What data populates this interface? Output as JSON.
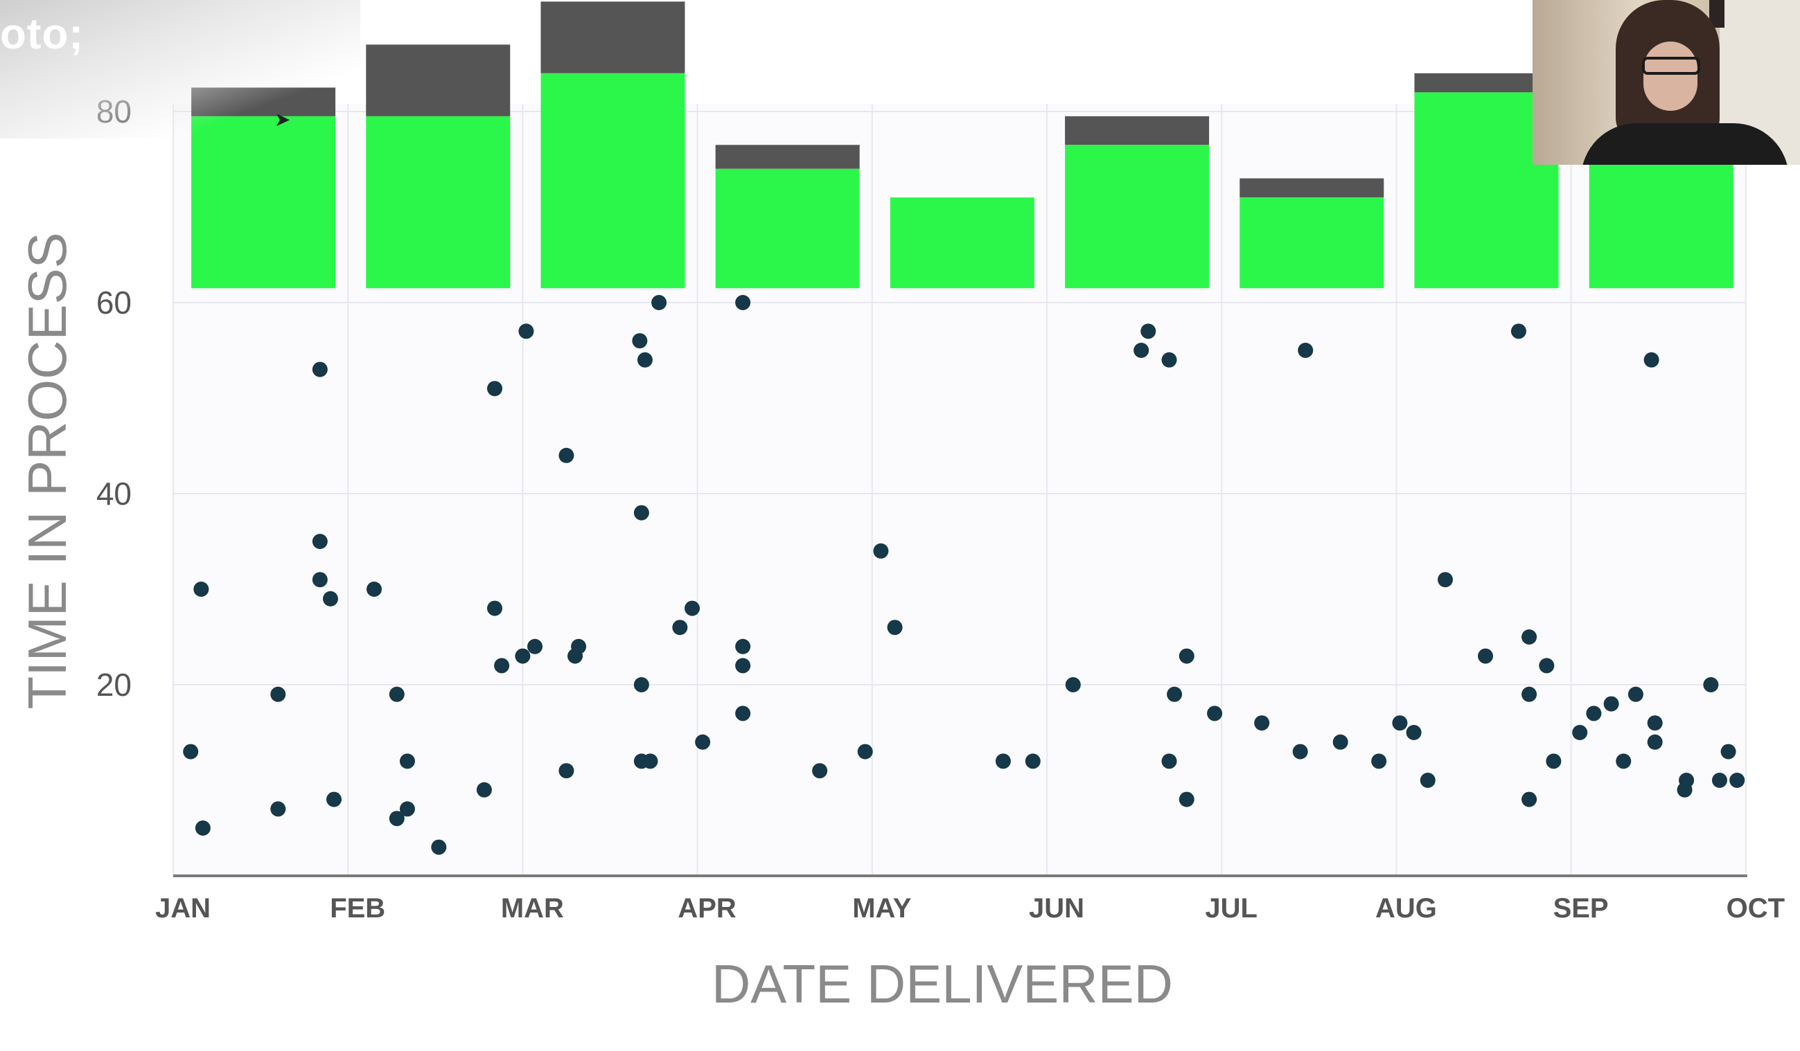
{
  "overlay": {
    "corner_text": "oto;"
  },
  "colors": {
    "bar_green": "#2bf74a",
    "bar_cap": "#555555",
    "dot": "#163848",
    "axis_text": "#555555",
    "title_text": "#8a8a8a",
    "grid": "#e7e8ee"
  },
  "chart_data": {
    "type": "scatter",
    "xlabel": "DATE DELIVERED",
    "ylabel": "TIME IN PROCESS",
    "x_ticks": [
      "JAN",
      "FEB",
      "MAR",
      "APR",
      "MAY",
      "JUN",
      "JUL",
      "AUG",
      "SEP",
      "OCT"
    ],
    "y_ticks": [
      20,
      40,
      60,
      80
    ],
    "x_range": [
      0,
      9
    ],
    "y_range": [
      0,
      80
    ],
    "grid": true,
    "points": [
      {
        "x": 0.1,
        "y": 13
      },
      {
        "x": 0.16,
        "y": 30
      },
      {
        "x": 0.17,
        "y": 5
      },
      {
        "x": 0.6,
        "y": 19
      },
      {
        "x": 0.6,
        "y": 7
      },
      {
        "x": 0.84,
        "y": 53
      },
      {
        "x": 0.84,
        "y": 35
      },
      {
        "x": 0.84,
        "y": 31
      },
      {
        "x": 0.9,
        "y": 29
      },
      {
        "x": 0.92,
        "y": 8
      },
      {
        "x": 1.15,
        "y": 30
      },
      {
        "x": 1.28,
        "y": 19
      },
      {
        "x": 1.28,
        "y": 6
      },
      {
        "x": 1.34,
        "y": 12
      },
      {
        "x": 1.34,
        "y": 7
      },
      {
        "x": 1.52,
        "y": 3
      },
      {
        "x": 1.78,
        "y": 9
      },
      {
        "x": 1.84,
        "y": 51
      },
      {
        "x": 1.84,
        "y": 28
      },
      {
        "x": 1.88,
        "y": 22
      },
      {
        "x": 2.0,
        "y": 23
      },
      {
        "x": 2.02,
        "y": 57
      },
      {
        "x": 2.07,
        "y": 24
      },
      {
        "x": 2.25,
        "y": 44
      },
      {
        "x": 2.25,
        "y": 11
      },
      {
        "x": 2.3,
        "y": 23
      },
      {
        "x": 2.32,
        "y": 24
      },
      {
        "x": 2.67,
        "y": 56
      },
      {
        "x": 2.68,
        "y": 38
      },
      {
        "x": 2.68,
        "y": 20
      },
      {
        "x": 2.68,
        "y": 12
      },
      {
        "x": 2.7,
        "y": 54
      },
      {
        "x": 2.73,
        "y": 12
      },
      {
        "x": 2.78,
        "y": 60
      },
      {
        "x": 2.9,
        "y": 26
      },
      {
        "x": 2.97,
        "y": 28
      },
      {
        "x": 3.03,
        "y": 14
      },
      {
        "x": 3.26,
        "y": 60
      },
      {
        "x": 3.26,
        "y": 24
      },
      {
        "x": 3.26,
        "y": 22
      },
      {
        "x": 3.26,
        "y": 17
      },
      {
        "x": 3.7,
        "y": 11
      },
      {
        "x": 3.96,
        "y": 13
      },
      {
        "x": 4.05,
        "y": 34
      },
      {
        "x": 4.13,
        "y": 26
      },
      {
        "x": 4.75,
        "y": 12
      },
      {
        "x": 4.92,
        "y": 12
      },
      {
        "x": 5.15,
        "y": 20
      },
      {
        "x": 5.54,
        "y": 55
      },
      {
        "x": 5.58,
        "y": 57
      },
      {
        "x": 5.7,
        "y": 54
      },
      {
        "x": 5.7,
        "y": 12
      },
      {
        "x": 5.73,
        "y": 19
      },
      {
        "x": 5.8,
        "y": 23
      },
      {
        "x": 5.8,
        "y": 8
      },
      {
        "x": 5.96,
        "y": 17
      },
      {
        "x": 6.23,
        "y": 16
      },
      {
        "x": 6.45,
        "y": 13
      },
      {
        "x": 6.48,
        "y": 55
      },
      {
        "x": 6.68,
        "y": 14
      },
      {
        "x": 6.9,
        "y": 12
      },
      {
        "x": 7.02,
        "y": 16
      },
      {
        "x": 7.1,
        "y": 15
      },
      {
        "x": 7.18,
        "y": 10
      },
      {
        "x": 7.28,
        "y": 31
      },
      {
        "x": 7.51,
        "y": 23
      },
      {
        "x": 7.7,
        "y": 57
      },
      {
        "x": 7.76,
        "y": 25
      },
      {
        "x": 7.76,
        "y": 19
      },
      {
        "x": 7.76,
        "y": 8
      },
      {
        "x": 7.86,
        "y": 22
      },
      {
        "x": 7.9,
        "y": 12
      },
      {
        "x": 8.05,
        "y": 15
      },
      {
        "x": 8.13,
        "y": 17
      },
      {
        "x": 8.23,
        "y": 18
      },
      {
        "x": 8.3,
        "y": 12
      },
      {
        "x": 8.37,
        "y": 19
      },
      {
        "x": 8.46,
        "y": 54
      },
      {
        "x": 8.48,
        "y": 16
      },
      {
        "x": 8.48,
        "y": 14
      },
      {
        "x": 8.65,
        "y": 9
      },
      {
        "x": 8.66,
        "y": 10
      },
      {
        "x": 8.8,
        "y": 20
      },
      {
        "x": 8.85,
        "y": 10
      },
      {
        "x": 8.9,
        "y": 13
      },
      {
        "x": 8.95,
        "y": 10
      }
    ],
    "bars": [
      {
        "month": "JAN",
        "green_top": 79.5,
        "total_top": 82.5
      },
      {
        "month": "FEB",
        "green_top": 79.5,
        "total_top": 87
      },
      {
        "month": "MAR",
        "green_top": 84,
        "total_top": 91.5
      },
      {
        "month": "APR",
        "green_top": 74,
        "total_top": 76.5
      },
      {
        "month": "MAY",
        "green_top": 71,
        "total_top": 71
      },
      {
        "month": "JUN",
        "green_top": 76.5,
        "total_top": 79.5
      },
      {
        "month": "JUL",
        "green_top": 71,
        "total_top": 73
      },
      {
        "month": "AUG",
        "green_top": 82,
        "total_top": 84
      },
      {
        "month": "SEP",
        "green_top": 81,
        "total_top": 81
      }
    ],
    "bar_base": 61.5
  }
}
